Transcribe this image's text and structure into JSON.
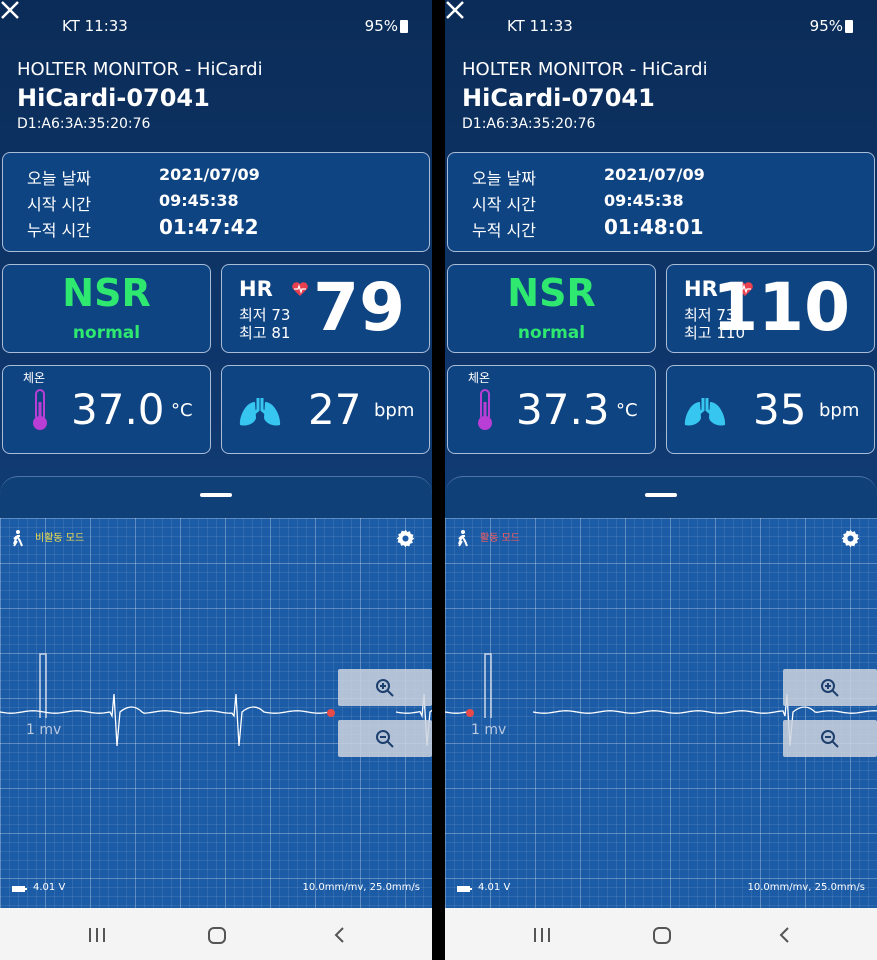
{
  "screens": [
    {
      "status": {
        "time": "KT 11:33",
        "battery": "95%"
      },
      "header": {
        "app": "HOLTER MONITOR - HiCardi",
        "device": "HiCardi-07041",
        "mac": "D1:A6:3A:35:20:76"
      },
      "info": {
        "rows": [
          [
            "오늘 날짜",
            "2021/07/09"
          ],
          [
            "시작 시간",
            "09:45:38"
          ],
          [
            "누적 시간",
            "01:47:42"
          ]
        ]
      },
      "rhythm": {
        "label": "NSR",
        "status": "normal"
      },
      "hr": {
        "label": "HR",
        "min": "최저 73",
        "max": "최고 81",
        "value": "79"
      },
      "temperature": {
        "label": "체온",
        "value": "37.0",
        "unit": "°C"
      },
      "respiration": {
        "value": "27",
        "unit": "bpm"
      },
      "ecg": {
        "mode": "비활동 모드",
        "scale": "1 mv",
        "battery": "4.01 V",
        "speed": "10.0mm/mv, 25.0mm/s"
      }
    },
    {
      "status": {
        "time": "KT 11:33",
        "battery": "95%"
      },
      "header": {
        "app": "HOLTER MONITOR - HiCardi",
        "device": "HiCardi-07041",
        "mac": "D1:A6:3A:35:20:76"
      },
      "info": {
        "rows": [
          [
            "오늘 날짜",
            "2021/07/09"
          ],
          [
            "시작 시간",
            "09:45:38"
          ],
          [
            "누적 시간",
            "01:48:01"
          ]
        ]
      },
      "rhythm": {
        "label": "NSR",
        "status": "normal"
      },
      "hr": {
        "label": "HR",
        "min": "최저 73",
        "max": "최고 110",
        "value": "110"
      },
      "temperature": {
        "label": "체온",
        "value": "37.3",
        "unit": "°C"
      },
      "respiration": {
        "value": "35",
        "unit": "bpm"
      },
      "ecg": {
        "mode": "활동 모드",
        "scale": "1 mv",
        "battery": "4.01 V",
        "speed": "10.0mm/mv, 25.0mm/s"
      }
    }
  ]
}
